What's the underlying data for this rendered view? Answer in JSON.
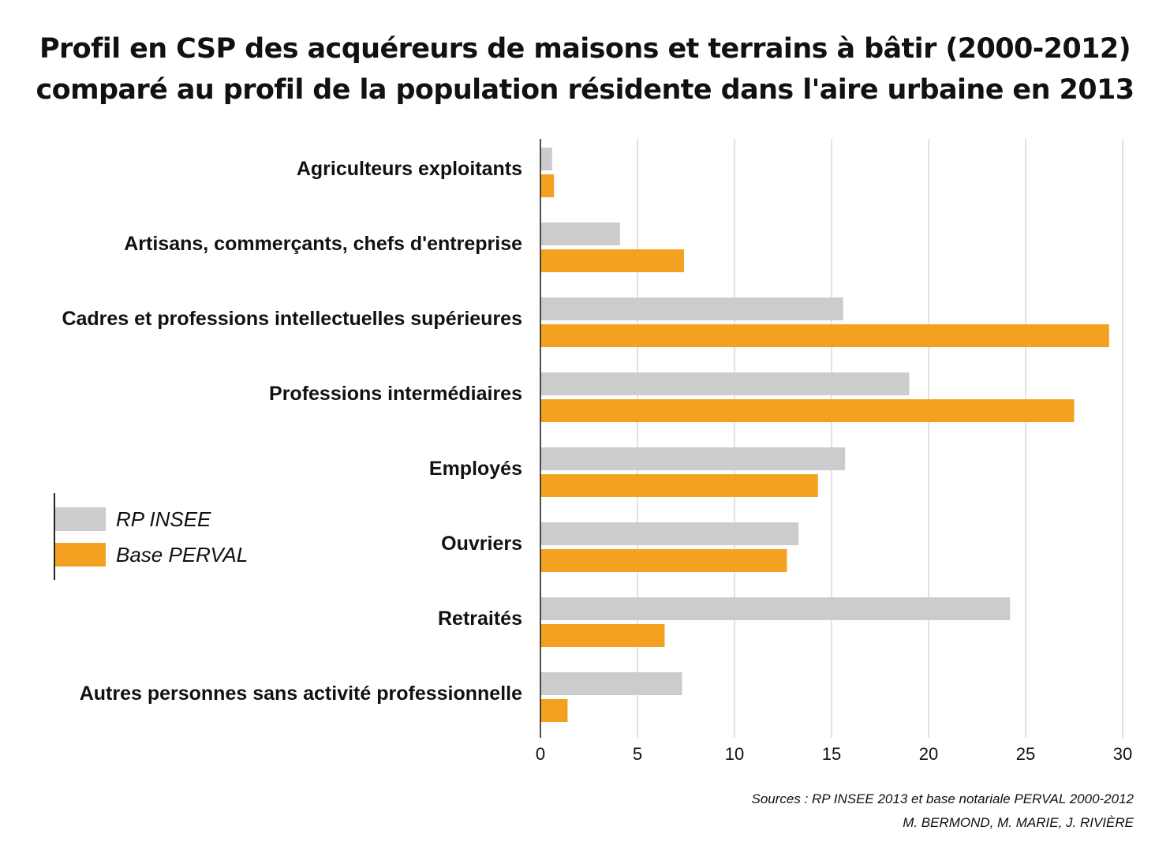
{
  "title": {
    "line1": "Profil en CSP des acquéreurs de maisons et terrains à bâtir (2000-2012)",
    "line2": "comparé au profil de la population résidente dans l'aire urbaine en 2013"
  },
  "chart_data": {
    "type": "bar",
    "orientation": "horizontal",
    "categories": [
      "Agriculteurs exploitants",
      "Artisans, commerçants, chefs d'entreprise",
      "Cadres et professions intellectuelles supérieures",
      "Professions intermédiaires",
      "Employés",
      "Ouvriers",
      "Retraités",
      "Autres personnes sans activité professionnelle"
    ],
    "series": [
      {
        "name": "RP INSEE",
        "color": "#cccccc",
        "values": [
          0.6,
          4.1,
          15.6,
          19.0,
          15.7,
          13.3,
          24.2,
          7.3
        ]
      },
      {
        "name": "Base PERVAL",
        "color": "#f4a020",
        "values": [
          0.7,
          7.4,
          29.3,
          27.5,
          14.3,
          12.7,
          6.4,
          1.4
        ]
      }
    ],
    "xlim": [
      0,
      30
    ],
    "xticks": [
      0,
      5,
      10,
      15,
      20,
      25,
      30
    ],
    "grid": true,
    "legend_position": "left"
  },
  "legend": {
    "items": [
      {
        "label": "RP INSEE",
        "color": "#cccccc"
      },
      {
        "label": "Base PERVAL",
        "color": "#f4a020"
      }
    ]
  },
  "sources": {
    "line1": "Sources : RP INSEE 2013 et base notariale PERVAL 2000-2012",
    "line2": "M. BERMOND, M. MARIE, J. RIVIÈRE"
  }
}
